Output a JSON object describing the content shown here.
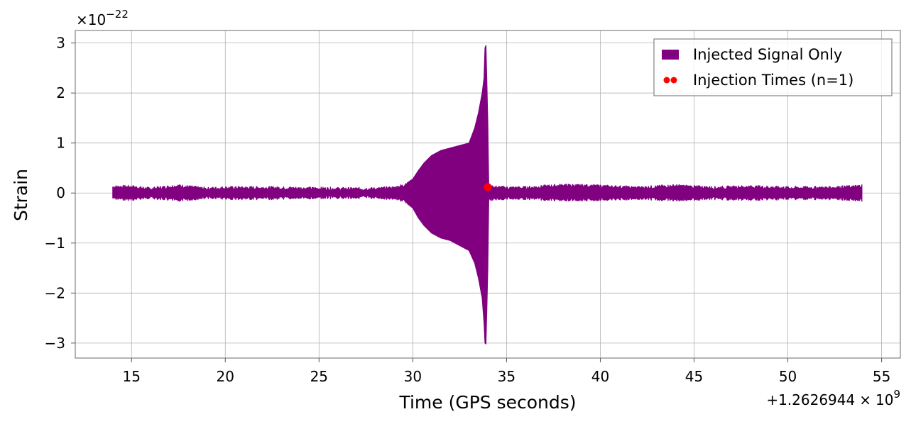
{
  "chart_data": {
    "type": "line",
    "xlabel": "Time (GPS seconds)",
    "ylabel": "Strain",
    "x_offset_label": "+1.2626944",
    "x_offset_times": "×",
    "x_offset_base": "10",
    "x_offset_exp": "9",
    "y_scale_times": "×",
    "y_scale_base": "10",
    "y_scale_exp": "−22",
    "xlim": [
      12,
      56
    ],
    "ylim": [
      -3.3,
      3.25
    ],
    "xticks": [
      15,
      20,
      25,
      30,
      35,
      40,
      45,
      50,
      55
    ],
    "yticks": [
      -3,
      -2,
      -1,
      0,
      1,
      2,
      3
    ],
    "ytick_labels": [
      "−3",
      "−2",
      "−1",
      "0",
      "1",
      "2",
      "3"
    ],
    "grid": true,
    "legend_position": "top-right",
    "series": [
      {
        "name": "Injected Signal Only",
        "color": "#800080",
        "x_range": [
          14,
          53.95
        ],
        "envelope": {
          "x": [
            14.0,
            15.0,
            16.0,
            17.5,
            19.0,
            20.0,
            22.0,
            24.0,
            26.0,
            28.0,
            29.0,
            29.5,
            30.0,
            30.3,
            30.6,
            31.0,
            31.5,
            32.0,
            32.5,
            33.0,
            33.3,
            33.5,
            33.7,
            33.8,
            33.85,
            33.9,
            33.95,
            34.0,
            34.05,
            35.0,
            36.0,
            38.0,
            40.0,
            42.0,
            44.0,
            46.0,
            48.0,
            50.0,
            52.0,
            53.5,
            53.95
          ],
          "upper": [
            0.12,
            0.12,
            0.08,
            0.14,
            0.08,
            0.1,
            0.1,
            0.09,
            0.08,
            0.08,
            0.1,
            0.15,
            0.28,
            0.45,
            0.6,
            0.75,
            0.85,
            0.9,
            0.95,
            1.0,
            1.3,
            1.6,
            2.0,
            2.3,
            2.9,
            2.95,
            2.2,
            1.4,
            0.12,
            0.1,
            0.1,
            0.15,
            0.13,
            0.1,
            0.14,
            0.1,
            0.12,
            0.1,
            0.1,
            0.12,
            0.14
          ],
          "lower": [
            -0.1,
            -0.12,
            -0.08,
            -0.14,
            -0.08,
            -0.1,
            -0.1,
            -0.09,
            -0.08,
            -0.08,
            -0.1,
            -0.15,
            -0.3,
            -0.5,
            -0.65,
            -0.8,
            -0.9,
            -0.95,
            -1.05,
            -1.15,
            -1.4,
            -1.7,
            -2.1,
            -2.6,
            -3.0,
            -3.02,
            -2.3,
            -1.5,
            -0.12,
            -0.1,
            -0.1,
            -0.13,
            -0.12,
            -0.1,
            -0.13,
            -0.1,
            -0.12,
            -0.1,
            -0.1,
            -0.12,
            -0.14
          ]
        }
      },
      {
        "name": "Injection Times (n=1)",
        "color": "#ff0000",
        "type": "scatter",
        "x": [
          34.0
        ],
        "y": [
          0.12
        ]
      }
    ]
  }
}
